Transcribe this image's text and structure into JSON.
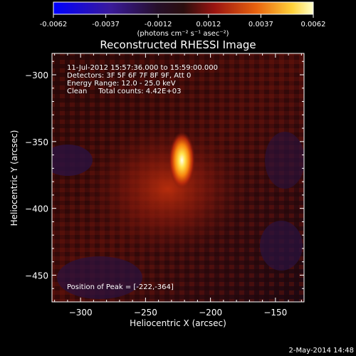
{
  "colorbar": {
    "ticks": [
      "-0.0062",
      "-0.0037",
      "-0.0012",
      "0.0012",
      "0.0037",
      "0.0062"
    ],
    "unit_label": "(photons cm⁻² s⁻¹ asec⁻²)",
    "range": [
      -0.0062,
      0.0062
    ]
  },
  "chart_data": {
    "type": "heatmap",
    "title": "Reconstructed RHESSI Image",
    "xlabel": "Heliocentric X (arcsec)",
    "ylabel": "Heliocentric Y (arcsec)",
    "xlim": [
      -322,
      -128
    ],
    "ylim": [
      -470,
      -284
    ],
    "x_ticks": [
      -300,
      -250,
      -200,
      -150
    ],
    "y_ticks": [
      -300,
      -350,
      -400,
      -450
    ],
    "x_tick_labels": [
      "−300",
      "−250",
      "−200",
      "−150"
    ],
    "y_tick_labels": [
      "−300",
      "−350",
      "−400",
      "−450"
    ],
    "annotations": [
      "11-Jul-2012 15:57:36.000 to 15:59:00.000",
      "Detectors: 3F 5F 6F 7F 8F 9F, Att 0",
      "Energy Range: 12.0 - 25.0 keV",
      "Clean     Total counts: 4.42E+03"
    ],
    "peak_label": "Position of Peak = [-222,-364]",
    "peak": {
      "x": -222,
      "y": -364
    },
    "source_extent_arcsec": {
      "sx": 10,
      "sy": 22
    }
  },
  "footer": {
    "timestamp": "2-May-2014 14:48"
  }
}
